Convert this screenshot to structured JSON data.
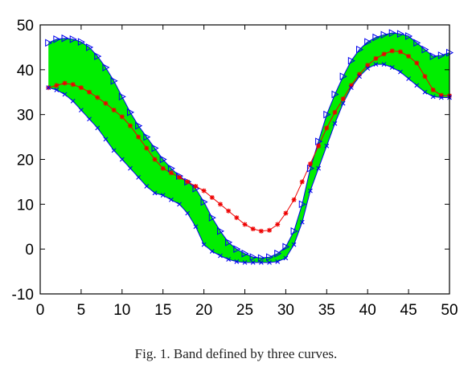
{
  "caption": "Fig. 1. Band defined by three curves.",
  "colors": {
    "band_fill": "#00ee00",
    "upper_lower": "#0000ee",
    "middle": "#ee0000",
    "axes": "#000000"
  },
  "chart_data": {
    "type": "area",
    "xlim": [
      0,
      50
    ],
    "ylim": [
      -10,
      50
    ],
    "x_ticks": [
      0,
      5,
      10,
      15,
      20,
      25,
      30,
      35,
      40,
      45,
      50
    ],
    "y_ticks": [
      -10,
      0,
      10,
      20,
      30,
      40,
      50
    ],
    "x_tick_labels": [
      "0",
      "5",
      "10",
      "15",
      "20",
      "25",
      "30",
      "35",
      "40",
      "45",
      "50"
    ],
    "y_tick_labels": [
      "-10",
      "0",
      "10",
      "20",
      "30",
      "40",
      "50"
    ],
    "grid": false,
    "x": [
      1,
      2,
      3,
      4,
      5,
      6,
      7,
      8,
      9,
      10,
      11,
      12,
      13,
      14,
      15,
      16,
      17,
      18,
      19,
      20,
      21,
      22,
      23,
      24,
      25,
      26,
      27,
      28,
      29,
      30,
      31,
      32,
      33,
      34,
      35,
      36,
      37,
      38,
      39,
      40,
      41,
      42,
      43,
      44,
      45,
      46,
      47,
      48,
      49,
      50
    ],
    "series": [
      {
        "marker": "triangle",
        "values": [
          46,
          46.8,
          47,
          46.8,
          46.2,
          45,
          43,
          40.5,
          37.5,
          34,
          30.5,
          27.5,
          25,
          22.5,
          20,
          18,
          16.3,
          15,
          13.5,
          10.5,
          7,
          4,
          1.5,
          0,
          -1,
          -1.8,
          -2,
          -1.8,
          -1,
          0.5,
          4,
          10,
          18,
          24,
          30,
          34.5,
          38.5,
          42,
          44.5,
          46.2,
          47.2,
          47.8,
          48.2,
          48,
          47.5,
          46,
          44.5,
          43,
          43.2,
          43.8
        ]
      },
      {
        "marker": "star",
        "values": [
          36,
          36.5,
          37,
          36.7,
          36,
          35,
          33.8,
          32.5,
          31,
          29.5,
          27.5,
          25,
          22.5,
          20,
          18,
          17,
          16,
          15,
          14,
          13,
          11.5,
          10,
          8.5,
          7,
          5.5,
          4.5,
          4,
          4.2,
          5.5,
          8,
          11,
          15,
          19,
          23,
          27,
          30.5,
          33.5,
          36.5,
          39,
          41,
          42.5,
          43.5,
          44.2,
          44,
          43,
          41.5,
          38.5,
          35.5,
          34.3,
          34.2
        ]
      },
      {
        "marker": "x",
        "values": [
          36,
          35.5,
          34.5,
          33,
          31,
          29,
          27,
          24.5,
          22,
          20,
          18,
          16,
          14,
          12.5,
          12,
          11,
          10,
          8,
          5,
          1,
          -0.5,
          -1.5,
          -2.3,
          -2.8,
          -3,
          -3,
          -3,
          -3,
          -2.8,
          -2,
          1,
          6,
          13,
          18,
          23,
          28,
          32.5,
          36,
          38.5,
          40.3,
          41.2,
          41.2,
          40.5,
          39.5,
          38,
          36.5,
          35,
          34,
          33.8,
          33.8
        ]
      }
    ]
  }
}
